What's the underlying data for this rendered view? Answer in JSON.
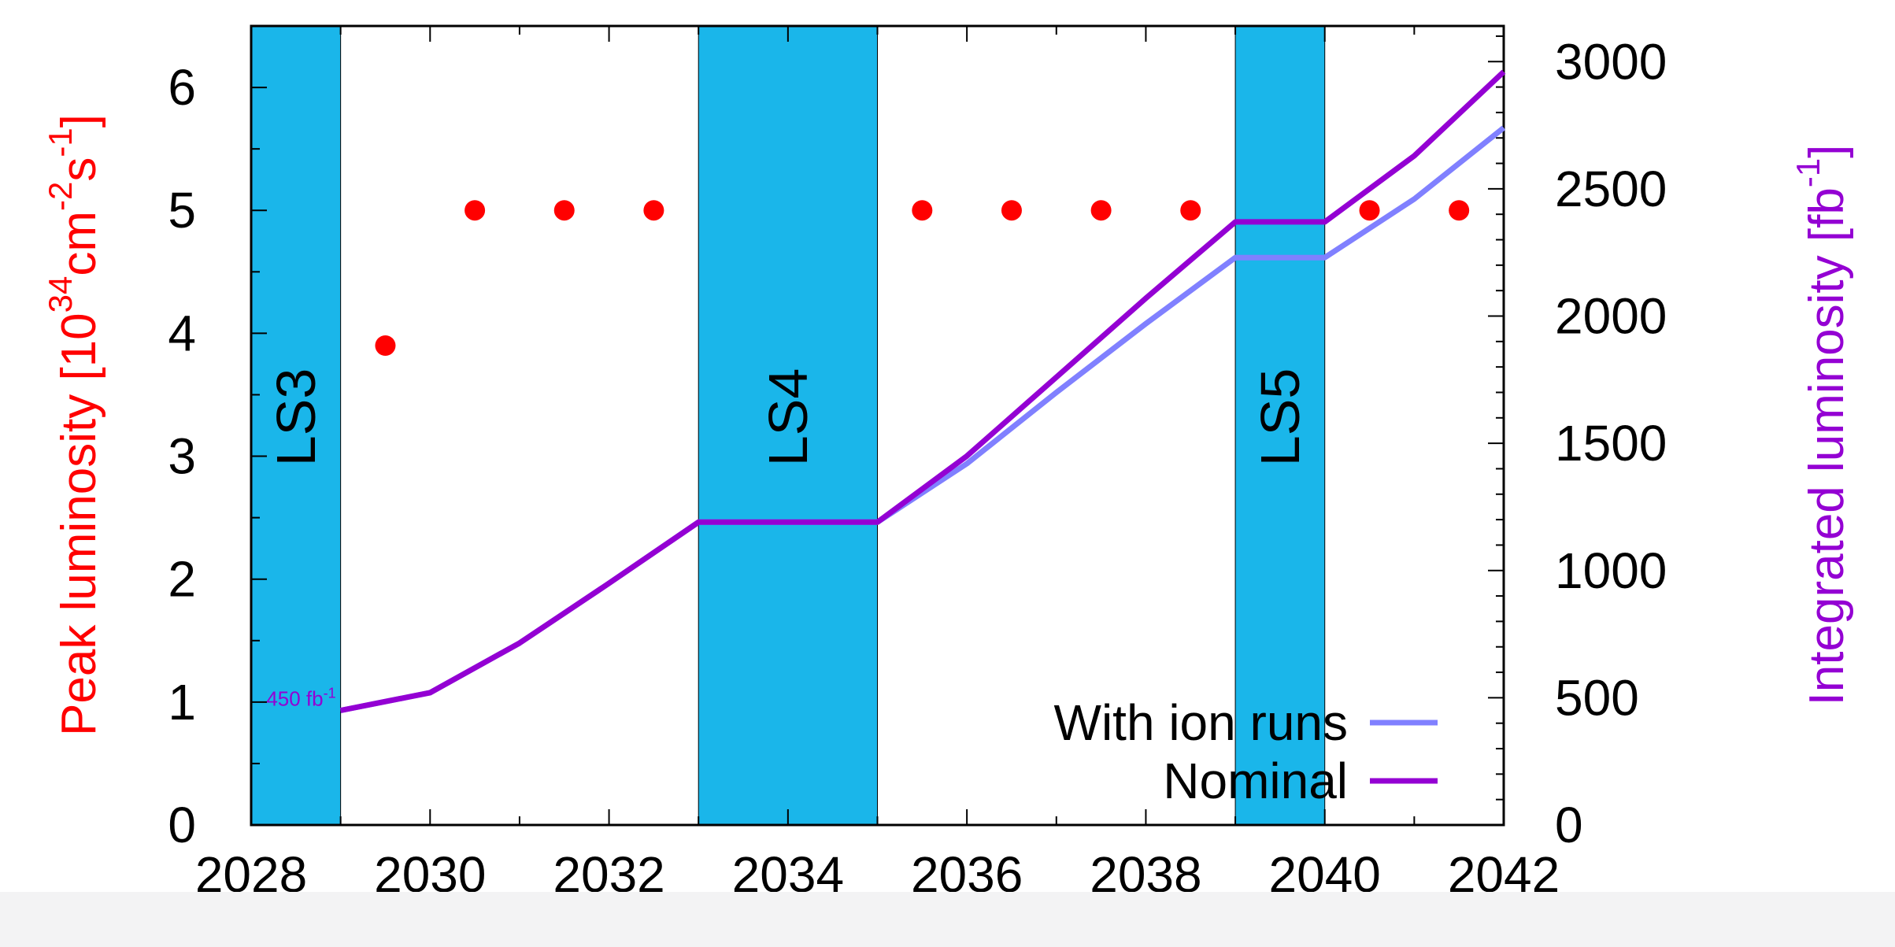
{
  "chart_data": {
    "type": "line",
    "title": "",
    "x": [
      2028,
      2029,
      2030,
      2031,
      2032,
      2033,
      2034,
      2035,
      2036,
      2037,
      2038,
      2039,
      2040,
      2041,
      2042
    ],
    "xlim": [
      2028,
      2042
    ],
    "x_ticks": [
      "2028",
      "2030",
      "2032",
      "2034",
      "2036",
      "2038",
      "2040",
      "2042"
    ],
    "y_left": {
      "label_parts": [
        "Peak luminosity [10",
        "34",
        "cm",
        "-2",
        "s",
        "-1",
        "]"
      ],
      "color": "#ff0000",
      "ylim": [
        0,
        6.5
      ],
      "ticks": [
        "0",
        "1",
        "2",
        "3",
        "4",
        "5",
        "6"
      ]
    },
    "y_right": {
      "label_parts": [
        "Integrated luminosity [fb",
        "-1",
        "]"
      ],
      "color": "#9400d3",
      "ylim": [
        0,
        3140
      ],
      "ticks": [
        "0",
        "500",
        "1000",
        "1500",
        "2000",
        "2500",
        "3000"
      ]
    },
    "shutdowns": [
      {
        "label": "LS3",
        "start": 2028,
        "end": 2029
      },
      {
        "label": "LS4",
        "start": 2033,
        "end": 2035
      },
      {
        "label": "LS5",
        "start": 2039,
        "end": 2040
      }
    ],
    "shutdown_color": "#1ab6ea",
    "peak_points": {
      "color": "#ff0000",
      "x": [
        2029.5,
        2030.5,
        2031.5,
        2032.5,
        2035.5,
        2036.5,
        2037.5,
        2038.5,
        2040.5,
        2041.5
      ],
      "y": [
        3.9,
        5,
        5,
        5,
        5,
        5,
        5,
        5,
        5,
        5
      ]
    },
    "series": [
      {
        "name": "With ion runs",
        "color": "#8080ff",
        "x": [
          2029,
          2030,
          2031,
          2032,
          2033,
          2035,
          2036,
          2037,
          2038,
          2039,
          2040,
          2041,
          2042
        ],
        "values": [
          450,
          520,
          715,
          950,
          1190,
          1190,
          1420,
          1700,
          1970,
          2230,
          2230,
          2460,
          2740
        ]
      },
      {
        "name": "Nominal",
        "color": "#9400d3",
        "x": [
          2029,
          2030,
          2031,
          2032,
          2033,
          2035,
          2036,
          2037,
          2038,
          2039,
          2040,
          2041,
          2042
        ],
        "values": [
          450,
          520,
          715,
          950,
          1190,
          1190,
          1450,
          1760,
          2070,
          2370,
          2370,
          2630,
          2960
        ]
      }
    ],
    "annotation": {
      "base": "450 fb",
      "sup": "-1"
    },
    "legend_position": "bottom-right",
    "grid": false
  }
}
